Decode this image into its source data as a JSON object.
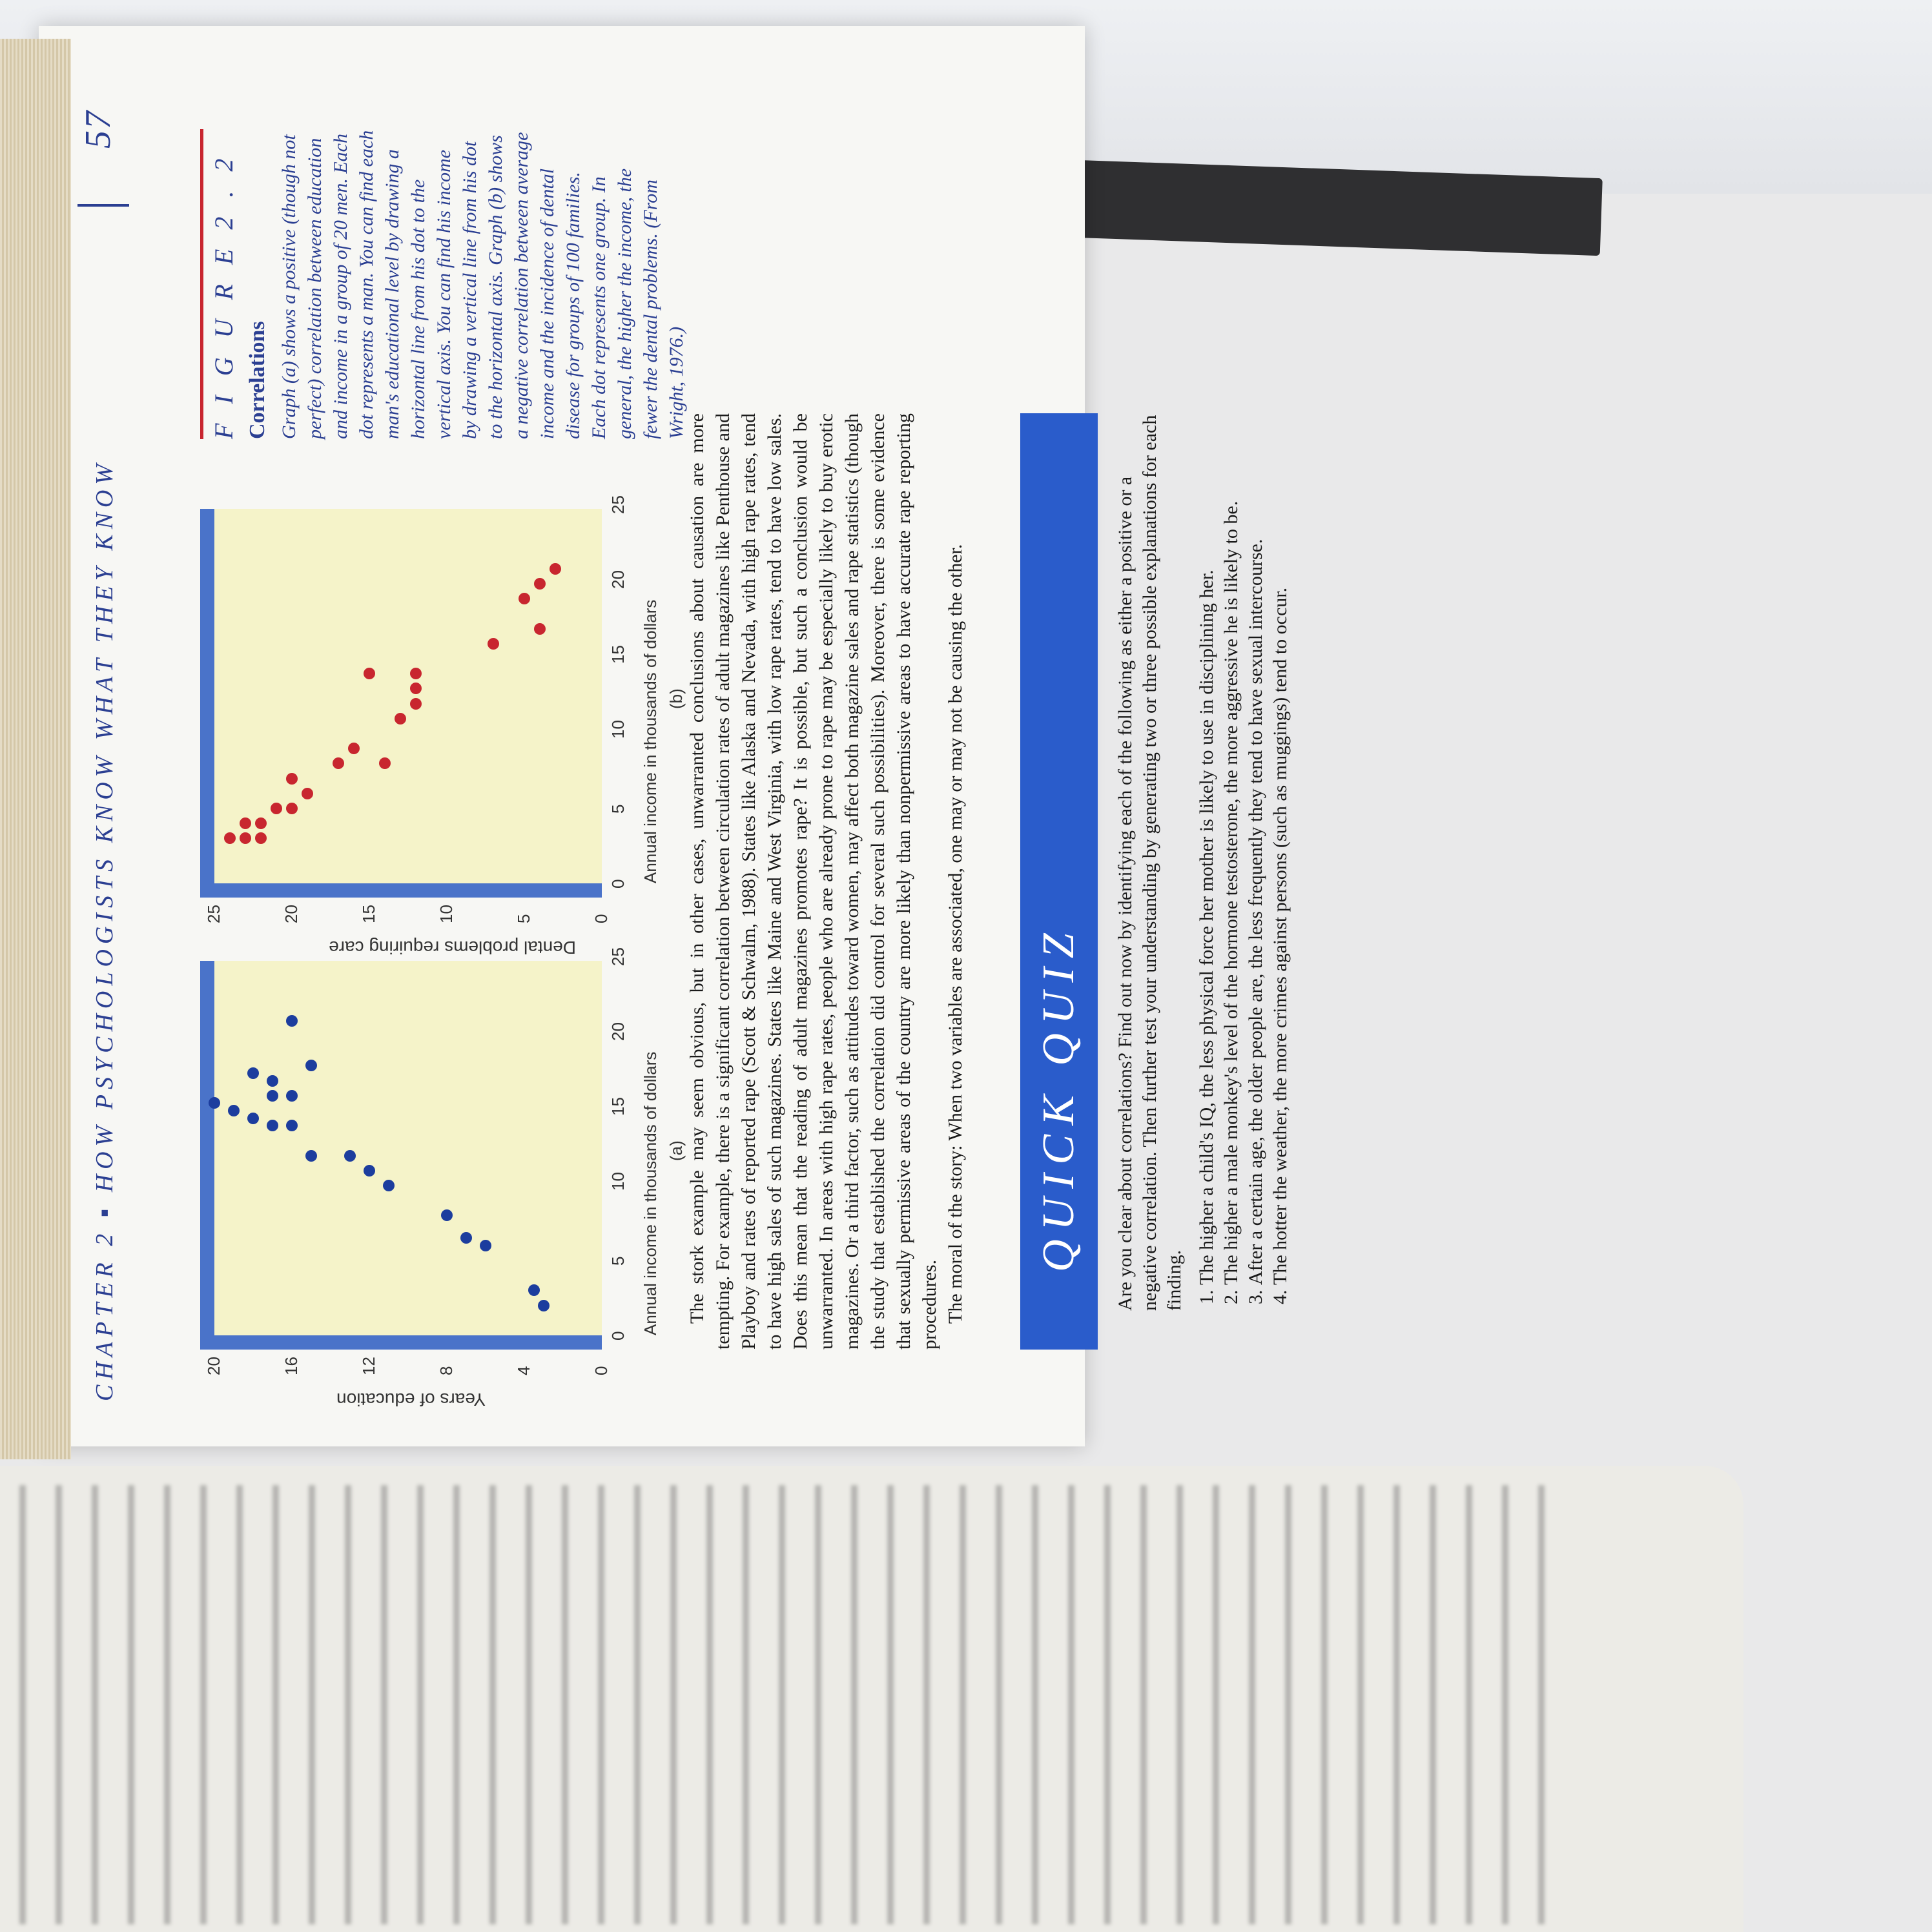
{
  "header": {
    "chapter": "CHAPTER 2 ▪ HOW PSYCHOLOGISTS KNOW WHAT THEY KNOW",
    "page_number": "57"
  },
  "figure": {
    "label": "F I G U R E   2 . 2",
    "title": "Correlations",
    "caption": "Graph (a) shows a positive (though not perfect) correlation between education and income in a group of 20 men. Each dot represents a man. You can find each man's educational level by drawing a horizontal line from his dot to the vertical axis. You can find his income by drawing a vertical line from his dot to the horizontal axis. Graph (b) shows a negative correlation between average income and the incidence of dental disease for groups of 100 families. Each dot represents one group. In general, the higher the income, the fewer the dental problems. (From Wright, 1976.)"
  },
  "chart_data": [
    {
      "type": "scatter",
      "label": "(a)",
      "xlabel": "Annual income in thousands of dollars",
      "ylabel": "Years of education",
      "xticks": [
        "0",
        "5",
        "10",
        "15",
        "20",
        "25"
      ],
      "yticks": [
        "0",
        "4",
        "8",
        "12",
        "16",
        "20"
      ],
      "xlim": [
        0,
        25
      ],
      "ylim": [
        0,
        20
      ],
      "color": "#1c3d9e",
      "points": [
        [
          2,
          3
        ],
        [
          3,
          3.5
        ],
        [
          6,
          6
        ],
        [
          6.5,
          7
        ],
        [
          8,
          8
        ],
        [
          10,
          11
        ],
        [
          11,
          12
        ],
        [
          12,
          13
        ],
        [
          12,
          15
        ],
        [
          14,
          16
        ],
        [
          14,
          17
        ],
        [
          14.5,
          18
        ],
        [
          15,
          19
        ],
        [
          15.5,
          20
        ],
        [
          16,
          16
        ],
        [
          16,
          17
        ],
        [
          17,
          17
        ],
        [
          17.5,
          18
        ],
        [
          18,
          15
        ],
        [
          21,
          16
        ]
      ]
    },
    {
      "type": "scatter",
      "label": "(b)",
      "xlabel": "Annual income in thousands of dollars",
      "ylabel": "Dental problems requiring care",
      "xticks": [
        "0",
        "5",
        "10",
        "15",
        "20",
        "25"
      ],
      "yticks": [
        "0",
        "5",
        "10",
        "15",
        "20",
        "25"
      ],
      "xlim": [
        0,
        25
      ],
      "ylim": [
        0,
        25
      ],
      "color": "#c8262f",
      "points": [
        [
          3,
          24
        ],
        [
          3,
          23
        ],
        [
          3,
          22
        ],
        [
          4,
          22
        ],
        [
          4,
          23
        ],
        [
          5,
          21
        ],
        [
          5,
          20
        ],
        [
          6,
          19
        ],
        [
          7,
          20
        ],
        [
          8,
          14
        ],
        [
          8,
          17
        ],
        [
          9,
          16
        ],
        [
          11,
          13
        ],
        [
          12,
          12
        ],
        [
          13,
          12
        ],
        [
          14,
          12
        ],
        [
          14,
          15
        ],
        [
          16,
          7
        ],
        [
          17,
          4
        ],
        [
          19,
          5
        ],
        [
          20,
          4
        ],
        [
          21,
          3
        ]
      ]
    }
  ],
  "body": {
    "paragraph1": "The stork example may seem obvious, but in other cases, unwarranted conclusions about causation are more tempting. For example, there is a significant correlation between circulation rates of adult magazines like Penthouse and Playboy and rates of reported rape (Scott & Schwalm, 1988). States like Alaska and Nevada, with high rape rates, tend to have high sales of such magazines. States like Maine and West Virginia, with low rape rates, tend to have low sales. Does this mean that the reading of adult magazines promotes rape? It is possible, but such a conclusion would be unwarranted. In areas with high rape rates, people who are already prone to rape may be especially likely to buy erotic magazines. Or a third factor, such as attitudes toward women, may affect both magazine sales and rape statistics (though the study that established the correlation did control for several such possibilities). Moreover, there is some evidence that sexually permissive areas of the country are more likely than nonpermissive areas to have accurate rape reporting procedures.",
    "paragraph2": "The moral of the story: When two variables are associated, one may or may not be causing the other."
  },
  "quiz": {
    "title": "QUICK QUIZ",
    "intro": "Are you clear about correlations? Find out now by identifying each of the following as either a positive or a negative correlation. Then further test your understanding by generating two or three possible explanations for each finding.",
    "items": [
      "The higher a child's IQ, the less physical force her mother is likely to use in disciplining her.",
      "The higher a male monkey's level of the hormone testosterone, the more aggressive he is likely to be.",
      "After a certain age, the older people are, the less frequently they tend to have sexual intercourse.",
      "The hotter the weather, the more crimes against persons (such as muggings) tend to occur."
    ]
  }
}
